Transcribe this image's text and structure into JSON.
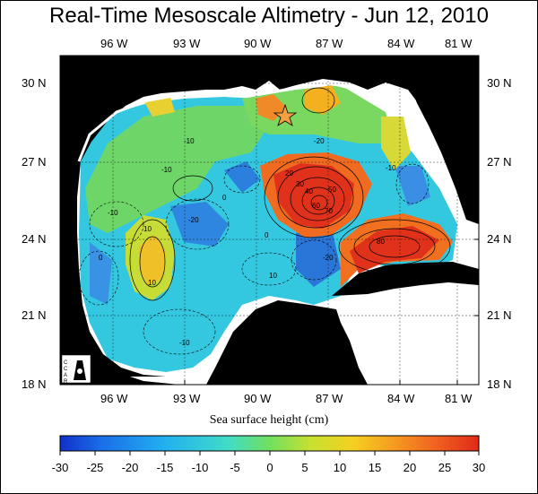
{
  "title": "Real-Time Mesoscale Altimetry - Jun 12, 2010",
  "map": {
    "lon_ticks": [
      "96 W",
      "93 W",
      "90 W",
      "87 W",
      "84 W",
      "81 W"
    ],
    "lat_ticks": [
      "30 N",
      "27 N",
      "24 N",
      "21 N",
      "18 N"
    ],
    "contour_labels": [
      "-10",
      "-10",
      "-10",
      "-20",
      "-20",
      "0",
      "0",
      "10",
      "10",
      "20",
      "30",
      "40",
      "50",
      "60",
      "70",
      "80",
      "-10",
      "10",
      "0",
      "-20",
      "-10"
    ]
  },
  "colorbar": {
    "label": "Sea surface height (cm)",
    "ticks": [
      "-30",
      "-25",
      "-20",
      "-15",
      "-10",
      "-5",
      "0",
      "5",
      "10",
      "15",
      "20",
      "25",
      "30"
    ],
    "min": -30,
    "max": 30
  },
  "logo": {
    "text": "CCAR"
  },
  "colors": {
    "land": "#000000",
    "deep_red": "#e8321a",
    "warm": "#f5a020",
    "green": "#5fd060",
    "cyan": "#40c8e8",
    "blue": "#2a7adc"
  }
}
